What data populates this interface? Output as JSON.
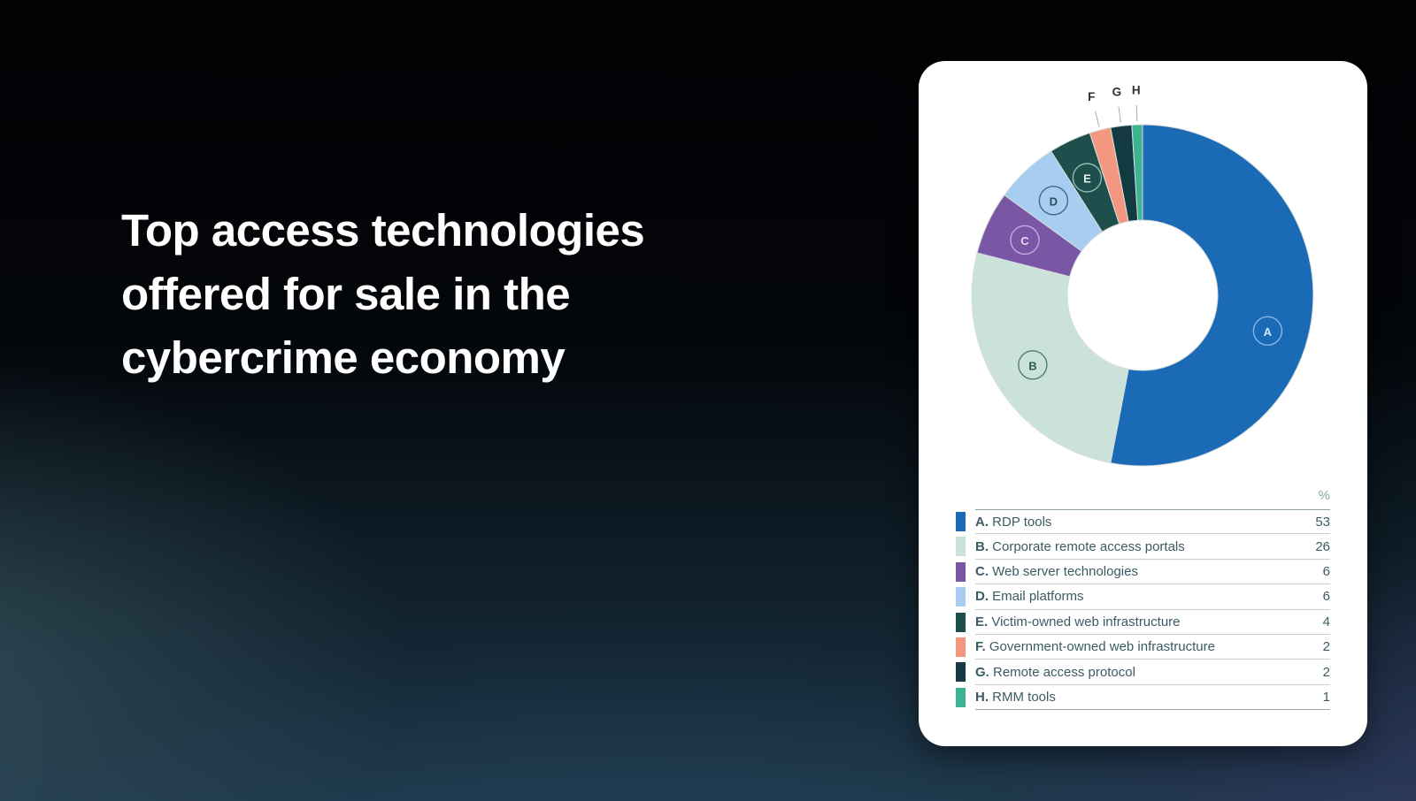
{
  "title": "Top access technologies\noffered for sale in the\ncybercrime economy",
  "card": {
    "percent_header": "%"
  },
  "colors": {
    "card_background": "#ffffff",
    "title_text": "#ffffff",
    "legend_text": "#3b5b63",
    "legend_header_text": "#8aa2a6",
    "outside_label_text": "#2b3335",
    "leader_line": "#a3adaf"
  },
  "chart_data": {
    "type": "pie",
    "title": "Top access technologies offered for sale in the cybercrime economy",
    "unit": "%",
    "start_angle_deg": 0,
    "direction": "clockwise",
    "legend_position": "bottom-table",
    "slices": [
      {
        "letter": "A",
        "label": "RDP tools",
        "value": 53,
        "color": "#1a6ab5",
        "label_style": "inside",
        "bubble_stroke": "#86b7e8",
        "bubble_text": "#d3e7fa"
      },
      {
        "letter": "B",
        "label": "Corporate remote access portals",
        "value": 26,
        "color": "#cbe2da",
        "label_style": "inside",
        "bubble_stroke": "#4f7f6d",
        "bubble_text": "#2f5a4c"
      },
      {
        "letter": "C",
        "label": "Web server technologies",
        "value": 6,
        "color": "#7a57a4",
        "label_style": "inside",
        "bubble_stroke": "#c2abdf",
        "bubble_text": "#e4d9f4"
      },
      {
        "letter": "D",
        "label": "Email platforms",
        "value": 6,
        "color": "#a7cdf0",
        "label_style": "inside",
        "bubble_stroke": "#44687f",
        "bubble_text": "#2e4d66"
      },
      {
        "letter": "E",
        "label": "Victim-owned web infrastructure",
        "value": 4,
        "color": "#1e4f4d",
        "label_style": "inside",
        "bubble_stroke": "#97b7b3",
        "bubble_text": "#e9f1ef"
      },
      {
        "letter": "F",
        "label": "Government-owned web infrastructure",
        "value": 2,
        "color": "#f49780",
        "label_style": "outside"
      },
      {
        "letter": "G",
        "label": "Remote access protocol",
        "value": 2,
        "color": "#123a40",
        "label_style": "outside"
      },
      {
        "letter": "H",
        "label": "RMM tools",
        "value": 1,
        "color": "#3eb394",
        "label_style": "outside"
      }
    ]
  }
}
